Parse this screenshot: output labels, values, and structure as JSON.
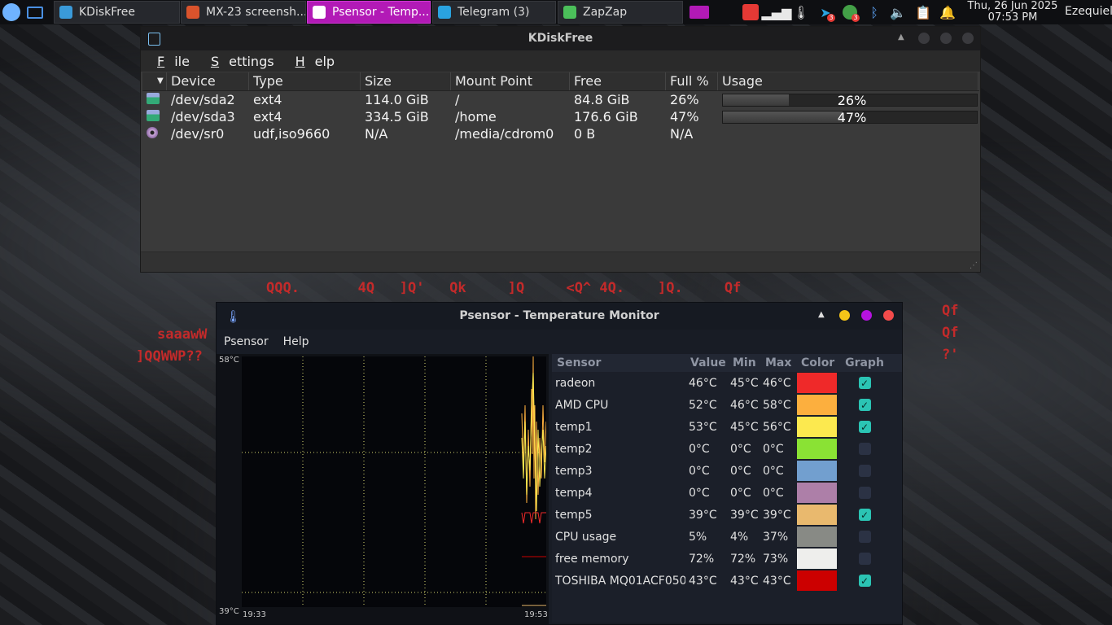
{
  "taskbar": {
    "tasks": [
      {
        "label": "KDiskFree",
        "icon": "kdiskfree-icon",
        "color": "#3a9ad9",
        "active": false
      },
      {
        "label": "MX-23 screensh...",
        "icon": "brave-browser-icon",
        "color": "#d9532c",
        "active": false
      },
      {
        "label": "Psensor - Temp...",
        "icon": "thermometer-icon",
        "color": "#ffffff",
        "active": true
      },
      {
        "label": "Telegram (3)",
        "icon": "telegram-icon",
        "color": "#2aa3e0",
        "active": false
      },
      {
        "label": "ZapZap",
        "icon": "zapzap-icon",
        "color": "#4bbf5a",
        "active": false
      }
    ],
    "badges": {
      "telegram": "3",
      "zapzap": "3"
    },
    "clock": {
      "date": "Thu, 26 Jun 2025",
      "time": "07:53 PM"
    },
    "user": "Ezequiel"
  },
  "kdiskfree": {
    "title": "KDiskFree",
    "menu": {
      "file": "F",
      "file_rest": "ile",
      "settings": "S",
      "settings_rest": "ettings",
      "help": "H",
      "help_rest": "elp"
    },
    "columns": [
      "Device",
      "Type",
      "Size",
      "Mount Point",
      "Free",
      "Full %",
      "Usage"
    ],
    "rows": [
      {
        "device": "/dev/sda2",
        "type": "ext4",
        "size": "114.0 GiB",
        "mount": "/",
        "free": "84.8 GiB",
        "full": "26%",
        "usage": 26,
        "usage_label": "26%",
        "icon": "hard-disk-icon"
      },
      {
        "device": "/dev/sda3",
        "type": "ext4",
        "size": "334.5 GiB",
        "mount": "/home",
        "free": "176.6 GiB",
        "full": "47%",
        "usage": 47,
        "usage_label": "47%",
        "icon": "hard-disk-icon"
      },
      {
        "device": "/dev/sr0",
        "type": "udf,iso9660",
        "size": "N/A",
        "mount": "/media/cdrom0",
        "free": "0 B",
        "full": "N/A",
        "usage": null,
        "usage_label": "",
        "icon": "optical-disc-icon"
      }
    ]
  },
  "desktop_text": {
    "line1": "QQQ.       4Q   ]Q'   Qk     ]Q     <Q^ 4Q.    ]Q.     Qf",
    "left1": "saaawW",
    "left2": "]QQWWP??",
    "right": [
      "Qf",
      "Qf",
      "?'"
    ]
  },
  "psensor": {
    "title": "Psensor - Temperature Monitor",
    "menu": [
      "Psensor",
      "Help"
    ],
    "graph": {
      "y_max": "58°C",
      "y_min": "39°C",
      "x_start": "19:33",
      "x_end": "19:53"
    },
    "columns": [
      "Sensor",
      "Value",
      "Min",
      "Max",
      "Color",
      "Graph"
    ],
    "sensors": [
      {
        "name": "radeon",
        "value": "46°C",
        "min": "45°C",
        "max": "46°C",
        "color": "#ef2929",
        "graph": true
      },
      {
        "name": "AMD CPU",
        "value": "52°C",
        "min": "46°C",
        "max": "58°C",
        "color": "#fcaf3e",
        "graph": true
      },
      {
        "name": "temp1",
        "value": "53°C",
        "min": "45°C",
        "max": "56°C",
        "color": "#fce94f",
        "graph": true
      },
      {
        "name": "temp2",
        "value": "0°C",
        "min": "0°C",
        "max": "0°C",
        "color": "#8ae234",
        "graph": false
      },
      {
        "name": "temp3",
        "value": "0°C",
        "min": "0°C",
        "max": "0°C",
        "color": "#729fcf",
        "graph": false
      },
      {
        "name": "temp4",
        "value": "0°C",
        "min": "0°C",
        "max": "0°C",
        "color": "#ad7fa8",
        "graph": false
      },
      {
        "name": "temp5",
        "value": "39°C",
        "min": "39°C",
        "max": "39°C",
        "color": "#e9b96e",
        "graph": true
      },
      {
        "name": "CPU usage",
        "value": "5%",
        "min": "4%",
        "max": "37%",
        "color": "#888a85",
        "graph": false
      },
      {
        "name": "free memory",
        "value": "72%",
        "min": "72%",
        "max": "73%",
        "color": "#eeeeec",
        "graph": false
      },
      {
        "name": "TOSHIBA MQ01ACF050",
        "value": "43°C",
        "min": "43°C",
        "max": "43°C",
        "color": "#cc0000",
        "graph": true
      }
    ]
  }
}
